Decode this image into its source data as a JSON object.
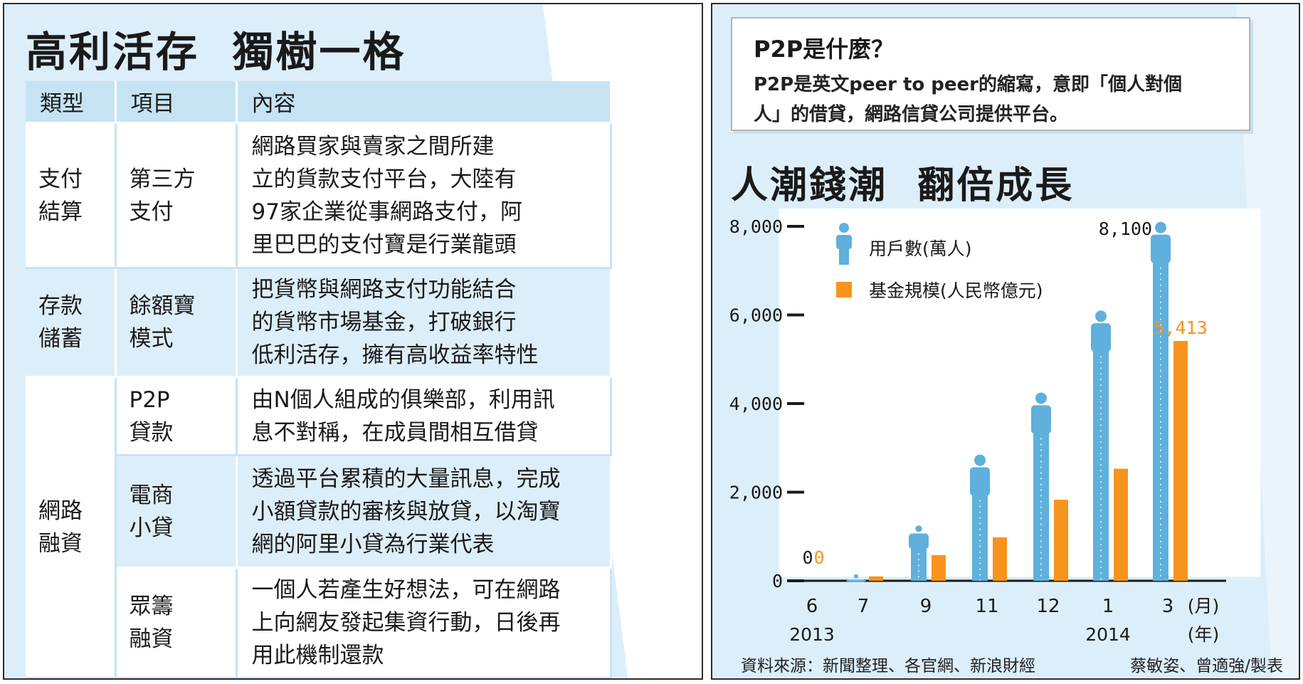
{
  "table": {
    "title": "高利活存  獨樹一格",
    "headers": [
      "類型",
      "項目",
      "內容"
    ],
    "rows": [
      {
        "type": "支付\n結算",
        "item": "第三方\n支付",
        "content": "網路買家與賣家之間所建\n立的貨款支付平台，大陸有\n97家企業從事網路支付，阿\n里巴巴的支付寶是行業龍頭"
      },
      {
        "type": "存款\n儲蓄",
        "item": "餘額寶\n模式",
        "content": "把貨幣與網路支付功能結合\n的貨幣市場基金，打破銀行\n低利活存，擁有高收益率特性"
      },
      {
        "type": "網路\n融資",
        "item": "P2P\n貸款",
        "content": "由N個人組成的俱樂部，利用訊\n息不對稱，在成員間相互借貸"
      },
      {
        "type": "",
        "item": "電商\n小貸",
        "content": "透過平台累積的大量訊息，完成\n小額貸款的審核與放貸，以淘寶\n網的阿里小貸為行業代表"
      },
      {
        "type": "",
        "item": "眾籌\n融資",
        "content": "一個人若產生好想法，可在網路\n上向網友發起集資行動，日後再\n用此機制還款"
      }
    ]
  },
  "info": {
    "question": "P2P是什麼？",
    "body": "P2P是英文peer to peer的縮寫，意即「個人對個\n人」的借貸，網路信貸公司提供平台。"
  },
  "chart_data": {
    "type": "bar",
    "title": "人潮錢潮  翻倍成長",
    "categories": [
      "6",
      "7",
      "9",
      "11",
      "12",
      "1",
      "3"
    ],
    "year_labels": {
      "6": "2013",
      "1": "2014"
    },
    "x_unit_labels": [
      "(月)",
      "(年)"
    ],
    "ylim": [
      0,
      8000
    ],
    "yticks": [
      "0",
      "2,000",
      "4,000",
      "6,000",
      "8,000"
    ],
    "ytick_values": [
      0,
      2000,
      4000,
      6000,
      8000
    ],
    "series": [
      {
        "name": "用戶數(萬人)",
        "color": "#5fb0dc",
        "icon": "person-icon",
        "values": [
          0,
          150,
          1250,
          2850,
          4250,
          6100,
          8100
        ]
      },
      {
        "name": "基金規模(人民幣億元)",
        "color": "#f7941d",
        "values": [
          0,
          100,
          580,
          980,
          1830,
          2530,
          5413
        ]
      }
    ],
    "data_labels": [
      {
        "series": 0,
        "index": 0,
        "text": "0"
      },
      {
        "series": 1,
        "index": 0,
        "text": "0"
      },
      {
        "series": 0,
        "index": 6,
        "text": "8,100"
      },
      {
        "series": 1,
        "index": 6,
        "text": "5,413"
      }
    ],
    "source": "資料來源：新聞整理、各官網、新浪財經",
    "credit": "蔡敏姿、曾適強/製表"
  }
}
